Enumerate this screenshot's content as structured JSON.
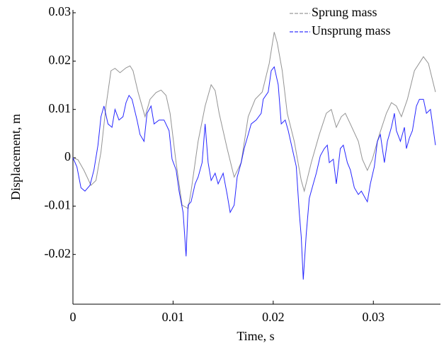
{
  "chart_data": {
    "type": "line",
    "x_label": "Time, s",
    "y_label": "Displacement, m",
    "xlim": [
      0,
      0.0367
    ],
    "ylim": [
      -0.03,
      0.03
    ],
    "xticks": [
      0,
      0.01,
      0.02,
      0.03
    ],
    "yticks": [
      -0.02,
      -0.01,
      0,
      0.01,
      0.02,
      0.03
    ],
    "grid": false,
    "legend": "upper right",
    "series": [
      {
        "name": "Sprung mass",
        "color": "#808080",
        "x": [
          0.0,
          0.0005,
          0.0011,
          0.0018,
          0.0023,
          0.0028,
          0.0033,
          0.0038,
          0.0042,
          0.0047,
          0.0053,
          0.0057,
          0.006,
          0.0065,
          0.0072,
          0.0077,
          0.0083,
          0.0088,
          0.0093,
          0.0097,
          0.0103,
          0.0109,
          0.0115,
          0.0118,
          0.0125,
          0.0132,
          0.0138,
          0.0142,
          0.0146,
          0.0154,
          0.0161,
          0.0168,
          0.0175,
          0.0182,
          0.0189,
          0.0196,
          0.0201,
          0.0204,
          0.0209,
          0.0214,
          0.0221,
          0.0228,
          0.0231,
          0.0238,
          0.0246,
          0.0253,
          0.0258,
          0.0263,
          0.0268,
          0.0272,
          0.0277,
          0.0285,
          0.0289,
          0.0294,
          0.0299,
          0.0306,
          0.0313,
          0.0318,
          0.0323,
          0.0328,
          0.0334,
          0.0341,
          0.035,
          0.0355,
          0.0362
        ],
        "values": [
          0.0,
          -0.0004,
          -0.0026,
          -0.0057,
          -0.0047,
          0.0012,
          0.0107,
          0.018,
          0.0185,
          0.0176,
          0.0186,
          0.019,
          0.018,
          0.0136,
          0.0085,
          0.0121,
          0.0135,
          0.014,
          0.0129,
          0.0092,
          -0.001,
          -0.0098,
          -0.0105,
          -0.0069,
          0.0034,
          0.0107,
          0.0151,
          0.0139,
          0.0092,
          0.0019,
          -0.004,
          -0.001,
          0.0085,
          0.0121,
          0.0136,
          0.0195,
          0.026,
          0.0238,
          0.018,
          0.0092,
          0.0034,
          -0.0047,
          -0.0069,
          -0.001,
          0.0048,
          0.0092,
          0.01,
          0.0063,
          0.0085,
          0.0092,
          0.007,
          0.0034,
          -0.0003,
          -0.0026,
          -0.0003,
          0.0048,
          0.0092,
          0.0114,
          0.0107,
          0.0085,
          0.0121,
          0.018,
          0.0209,
          0.0195,
          0.0136
        ]
      },
      {
        "name": "Unsprung mass",
        "color": "#0000ff",
        "x": [
          0.0,
          0.0004,
          0.0008,
          0.0012,
          0.0017,
          0.0021,
          0.0025,
          0.0028,
          0.0031,
          0.0035,
          0.0039,
          0.0042,
          0.0046,
          0.005,
          0.0053,
          0.0056,
          0.0059,
          0.0064,
          0.0067,
          0.0071,
          0.0074,
          0.0078,
          0.0081,
          0.0086,
          0.0091,
          0.0096,
          0.0099,
          0.0103,
          0.0106,
          0.011,
          0.0113,
          0.0115,
          0.0118,
          0.0122,
          0.0125,
          0.0129,
          0.0132,
          0.0135,
          0.0138,
          0.0142,
          0.0145,
          0.015,
          0.0154,
          0.0157,
          0.0161,
          0.0164,
          0.0168,
          0.0171,
          0.0175,
          0.0178,
          0.0183,
          0.0188,
          0.019,
          0.0195,
          0.0198,
          0.0201,
          0.0205,
          0.0208,
          0.0212,
          0.0215,
          0.0219,
          0.0223,
          0.0226,
          0.0228,
          0.023,
          0.0233,
          0.0236,
          0.024,
          0.0243,
          0.0247,
          0.0251,
          0.0254,
          0.0256,
          0.026,
          0.0263,
          0.0267,
          0.027,
          0.0274,
          0.0277,
          0.0281,
          0.0285,
          0.0288,
          0.0292,
          0.0294,
          0.0297,
          0.0301,
          0.0304,
          0.0307,
          0.0311,
          0.0314,
          0.0318,
          0.0321,
          0.0323,
          0.0327,
          0.0331,
          0.0333,
          0.0336,
          0.0339,
          0.0343,
          0.0346,
          0.035,
          0.0353,
          0.0357,
          0.036,
          0.0362
        ],
        "values": [
          0.0,
          -0.0019,
          -0.0062,
          -0.0069,
          -0.0057,
          -0.0025,
          0.0026,
          0.0085,
          0.0107,
          0.007,
          0.0063,
          0.01,
          0.0078,
          0.0085,
          0.0114,
          0.0129,
          0.0121,
          0.0078,
          0.0048,
          0.0034,
          0.0092,
          0.0107,
          0.007,
          0.0078,
          0.0078,
          0.0056,
          -0.0003,
          -0.0025,
          -0.0069,
          -0.0113,
          -0.0204,
          -0.0098,
          -0.0091,
          -0.0054,
          -0.004,
          -0.001,
          0.007,
          -0.001,
          -0.0047,
          -0.0032,
          -0.0054,
          -0.0032,
          -0.0076,
          -0.0113,
          -0.0098,
          -0.004,
          -0.001,
          0.0019,
          0.0048,
          0.007,
          0.0078,
          0.0092,
          0.0121,
          0.0136,
          0.018,
          0.0188,
          0.0151,
          0.007,
          0.0078,
          0.0056,
          0.0019,
          -0.0018,
          -0.0113,
          -0.0164,
          -0.0252,
          -0.0157,
          -0.0084,
          -0.0054,
          -0.0032,
          0.0004,
          0.0019,
          0.0026,
          -0.001,
          -0.0003,
          -0.0054,
          0.0019,
          0.0026,
          -0.001,
          -0.0025,
          -0.0062,
          -0.0076,
          -0.0069,
          -0.0084,
          -0.0091,
          -0.0054,
          -0.0018,
          0.0034,
          0.0048,
          -0.001,
          0.0034,
          0.0063,
          0.0092,
          0.0056,
          0.0034,
          0.0063,
          0.0019,
          0.0041,
          0.0056,
          0.0107,
          0.0121,
          0.0121,
          0.0092,
          0.01,
          0.0056,
          0.0026
        ]
      }
    ]
  }
}
